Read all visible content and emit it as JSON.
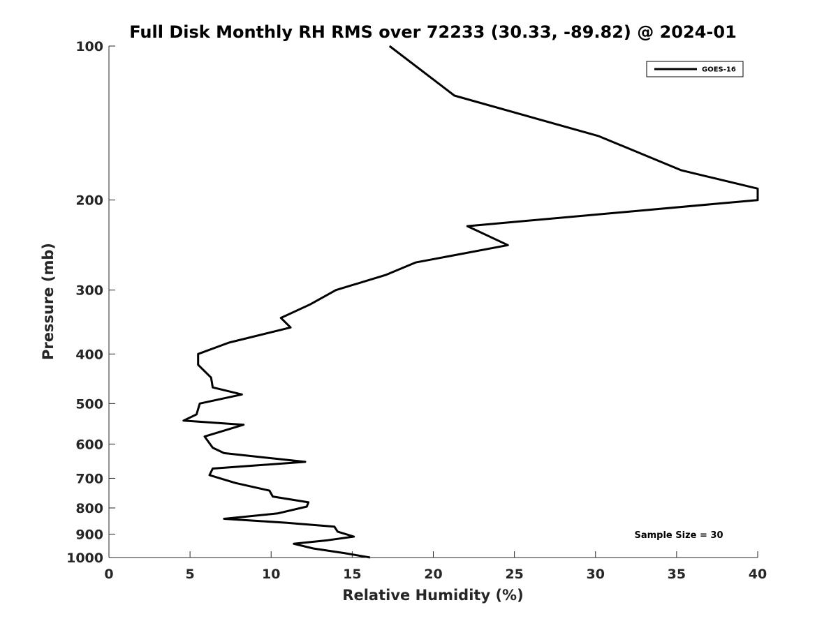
{
  "chart_data": {
    "type": "line",
    "title": "Full Disk Monthly RH RMS over 72233 (30.33, -89.82) @ 2024-01",
    "xlabel": "Relative Humidity (%)",
    "ylabel": "Pressure (mb)",
    "xlim": [
      0,
      40
    ],
    "ylim": [
      100,
      1000
    ],
    "y_scale": "log",
    "y_reversed": true,
    "x_ticks": [
      "0",
      "5",
      "10",
      "15",
      "20",
      "25",
      "30",
      "35",
      "40"
    ],
    "y_ticks": [
      "100",
      "200",
      "300",
      "400",
      "500",
      "600",
      "700",
      "800",
      "900",
      "1000"
    ],
    "grid": false,
    "legend_position": "top-right",
    "annotation": "Sample Size = 30",
    "colors": {
      "series": "#000000",
      "axis": "#262626"
    },
    "series": [
      {
        "name": "GOES-16",
        "points": [
          [
            17.3,
            100
          ],
          [
            21.3,
            125
          ],
          [
            30.2,
            150
          ],
          [
            35.3,
            175
          ],
          [
            40.0,
            190
          ],
          [
            40.0,
            200
          ],
          [
            22.1,
            225
          ],
          [
            24.6,
            245
          ],
          [
            18.9,
            265
          ],
          [
            17.1,
            280
          ],
          [
            14.0,
            300
          ],
          [
            12.4,
            320
          ],
          [
            10.6,
            340
          ],
          [
            11.2,
            355
          ],
          [
            7.4,
            380
          ],
          [
            5.5,
            400
          ],
          [
            5.5,
            420
          ],
          [
            6.3,
            445
          ],
          [
            6.4,
            465
          ],
          [
            8.2,
            480
          ],
          [
            5.6,
            500
          ],
          [
            5.4,
            525
          ],
          [
            4.6,
            540
          ],
          [
            8.3,
            550
          ],
          [
            5.9,
            580
          ],
          [
            6.4,
            610
          ],
          [
            7.1,
            625
          ],
          [
            12.1,
            650
          ],
          [
            6.4,
            670
          ],
          [
            6.2,
            690
          ],
          [
            7.8,
            715
          ],
          [
            9.9,
            740
          ],
          [
            10.1,
            760
          ],
          [
            12.3,
            780
          ],
          [
            12.2,
            795
          ],
          [
            10.4,
            820
          ],
          [
            7.1,
            840
          ],
          [
            10.9,
            855
          ],
          [
            13.9,
            870
          ],
          [
            14.1,
            890
          ],
          [
            15.1,
            910
          ],
          [
            13.5,
            925
          ],
          [
            11.4,
            940
          ],
          [
            12.6,
            960
          ],
          [
            14.5,
            980
          ],
          [
            16.1,
            1000
          ]
        ]
      }
    ]
  }
}
